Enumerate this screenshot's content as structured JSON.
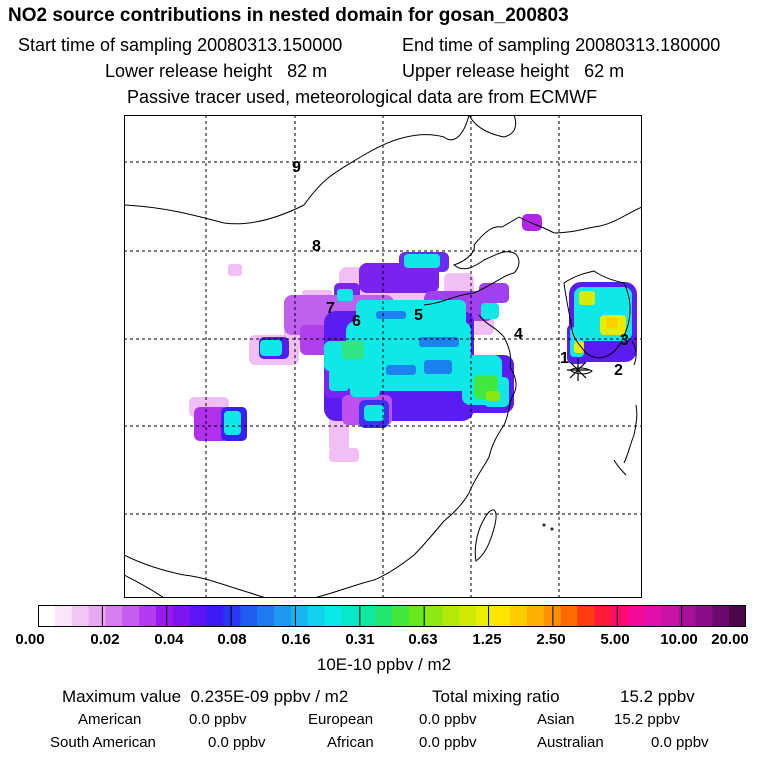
{
  "title": "NO2 source contributions in nested domain for gosan_200803",
  "sampling": {
    "start": "Start time of sampling 20080313.150000",
    "end": "End time of sampling 20080313.180000"
  },
  "release": {
    "lower": "Lower release height   82 m",
    "upper": "Upper release height   62 m"
  },
  "tracer_note": "Passive tracer used, meteorological data are from ECMWF",
  "map": {
    "region_labels": [
      "9",
      "8",
      "7",
      "6",
      "5",
      "4",
      "1",
      "2",
      "3"
    ],
    "receptor_marker": "star-icon"
  },
  "colorbar": {
    "ticks": [
      "0.00",
      "0.02",
      "0.04",
      "0.08",
      "0.16",
      "0.31",
      "0.63",
      "1.25",
      "2.50",
      "5.00",
      "10.00",
      "20.00"
    ],
    "colors": [
      "#ffffff",
      "#fae6fa",
      "#f2c8f5",
      "#e9a8f2",
      "#d77ff0",
      "#c65cf0",
      "#b33bef",
      "#9b1af0",
      "#7d14f2",
      "#5e14f4",
      "#3c1cf5",
      "#2838f2",
      "#205cf0",
      "#1f7af0",
      "#1c98f0",
      "#18b4f0",
      "#12d2f0",
      "#0aeaea",
      "#08e8c8",
      "#10e8a0",
      "#22e670",
      "#44e83a",
      "#6ae81e",
      "#90e812",
      "#b2ea0a",
      "#d0ea06",
      "#ecec04",
      "#ffe400",
      "#ffcc00",
      "#ffb000",
      "#ff9000",
      "#ff6a00",
      "#ff3c14",
      "#ff1a3c",
      "#ff0a6e",
      "#f20a98",
      "#e010aa",
      "#c812a6",
      "#a8129a",
      "#880e88",
      "#6a0a6c",
      "#4a0648"
    ],
    "unit": "10E-10 ppbv / m2"
  },
  "summary": {
    "max_label": "Maximum value  0.235E-09 ppbv / m2",
    "total_label": "Total mixing ratio",
    "total_value": "15.2 ppbv",
    "american_label": "American",
    "american_value": "0.0 ppbv",
    "european_label": "European",
    "european_value": "0.0 ppbv",
    "asian_label": "Asian",
    "asian_value": "15.2 ppbv",
    "south_american_label": "South American",
    "south_american_value": "0.0 ppbv",
    "african_label": "African",
    "african_value": "0.0 ppbv",
    "australian_label": "Australian",
    "australian_value": "0.0 ppbv"
  }
}
